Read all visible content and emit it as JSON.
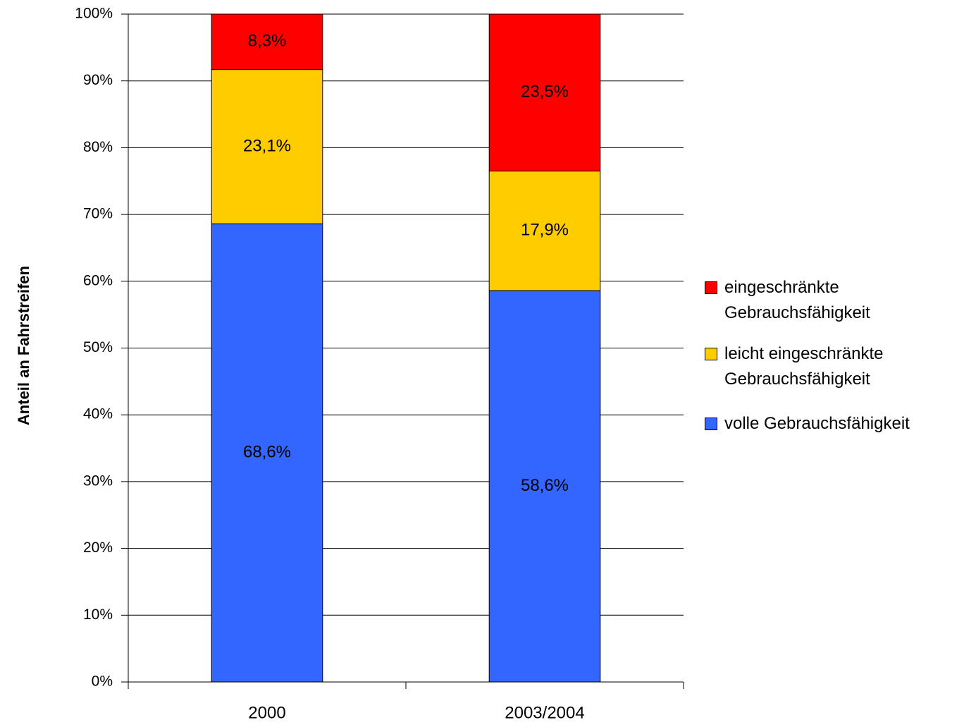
{
  "chart_data": {
    "type": "stacked_bar",
    "y_label": "Anteil an Fahrstreifen",
    "categories": [
      "2000",
      "2003/2004"
    ],
    "series": [
      {
        "name": "volle Gebrauchsfähigkeit",
        "color": "#3366ff",
        "values": [
          68.6,
          58.6
        ],
        "value_labels": [
          "68,6%",
          "58,6%"
        ]
      },
      {
        "name": "leicht eingeschränkte Gebrauchsfähigkeit",
        "color": "#ffcc00",
        "values": [
          23.1,
          17.9
        ],
        "value_labels": [
          "23,1%",
          "17,9%"
        ]
      },
      {
        "name": "eingeschränkte Gebrauchsfähigkeit",
        "color": "#ff0000",
        "values": [
          8.3,
          23.5
        ],
        "value_labels": [
          "8,3%",
          "23,5%"
        ]
      }
    ],
    "ylim": [
      0,
      100
    ],
    "yticks": [
      {
        "value": 0,
        "label": "0%"
      },
      {
        "value": 10,
        "label": "10%"
      },
      {
        "value": 20,
        "label": "20%"
      },
      {
        "value": 30,
        "label": "30%"
      },
      {
        "value": 40,
        "label": "40%"
      },
      {
        "value": 50,
        "label": "50%"
      },
      {
        "value": 60,
        "label": "60%"
      },
      {
        "value": 70,
        "label": "70%"
      },
      {
        "value": 80,
        "label": "80%"
      },
      {
        "value": 90,
        "label": "90%"
      },
      {
        "value": 100,
        "label": "100%"
      }
    ],
    "grid": true,
    "legend": "right"
  }
}
